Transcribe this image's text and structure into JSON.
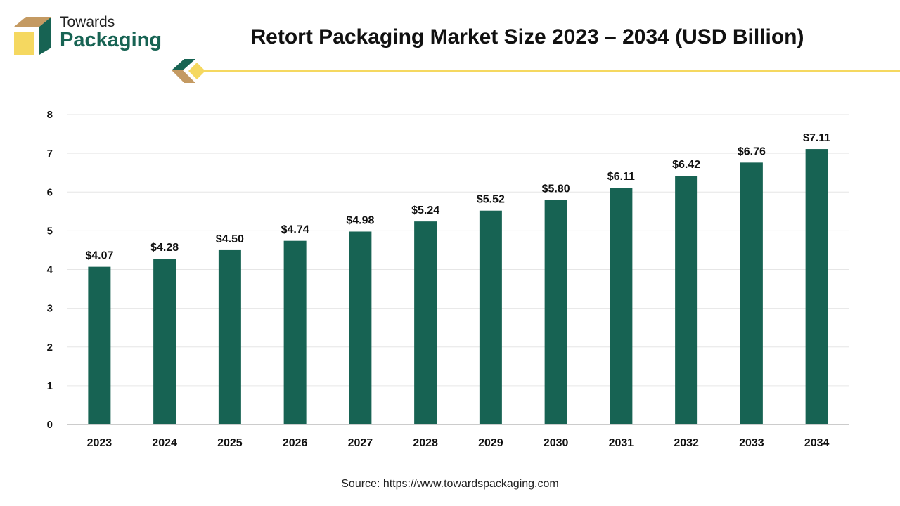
{
  "logo": {
    "line1": "Towards",
    "line2": "Packaging"
  },
  "source": "Source: https://www.towardspackaging.com",
  "colors": {
    "bar": "#176353",
    "accent_yellow": "#f5d860",
    "accent_tan": "#c49a62",
    "grid": "#e6e6e6"
  },
  "chart_data": {
    "type": "bar",
    "title": "Retort Packaging Market Size 2023 – 2034 (USD Billion)",
    "xlabel": "",
    "ylabel": "",
    "categories": [
      "2023",
      "2024",
      "2025",
      "2026",
      "2027",
      "2028",
      "2029",
      "2030",
      "2031",
      "2032",
      "2033",
      "2034"
    ],
    "values": [
      4.07,
      4.28,
      4.5,
      4.74,
      4.98,
      5.24,
      5.52,
      5.8,
      6.11,
      6.42,
      6.76,
      7.11
    ],
    "data_labels": [
      "$4.07",
      "$4.28",
      "$4.50",
      "$4.74",
      "$4.98",
      "$5.24",
      "$5.52",
      "$5.80",
      "$6.11",
      "$6.42",
      "$6.76",
      "$7.11"
    ],
    "ylim": [
      0,
      8
    ],
    "yticks": [
      0,
      1,
      2,
      3,
      4,
      5,
      6,
      7,
      8
    ],
    "grid": true,
    "legend": "none"
  }
}
